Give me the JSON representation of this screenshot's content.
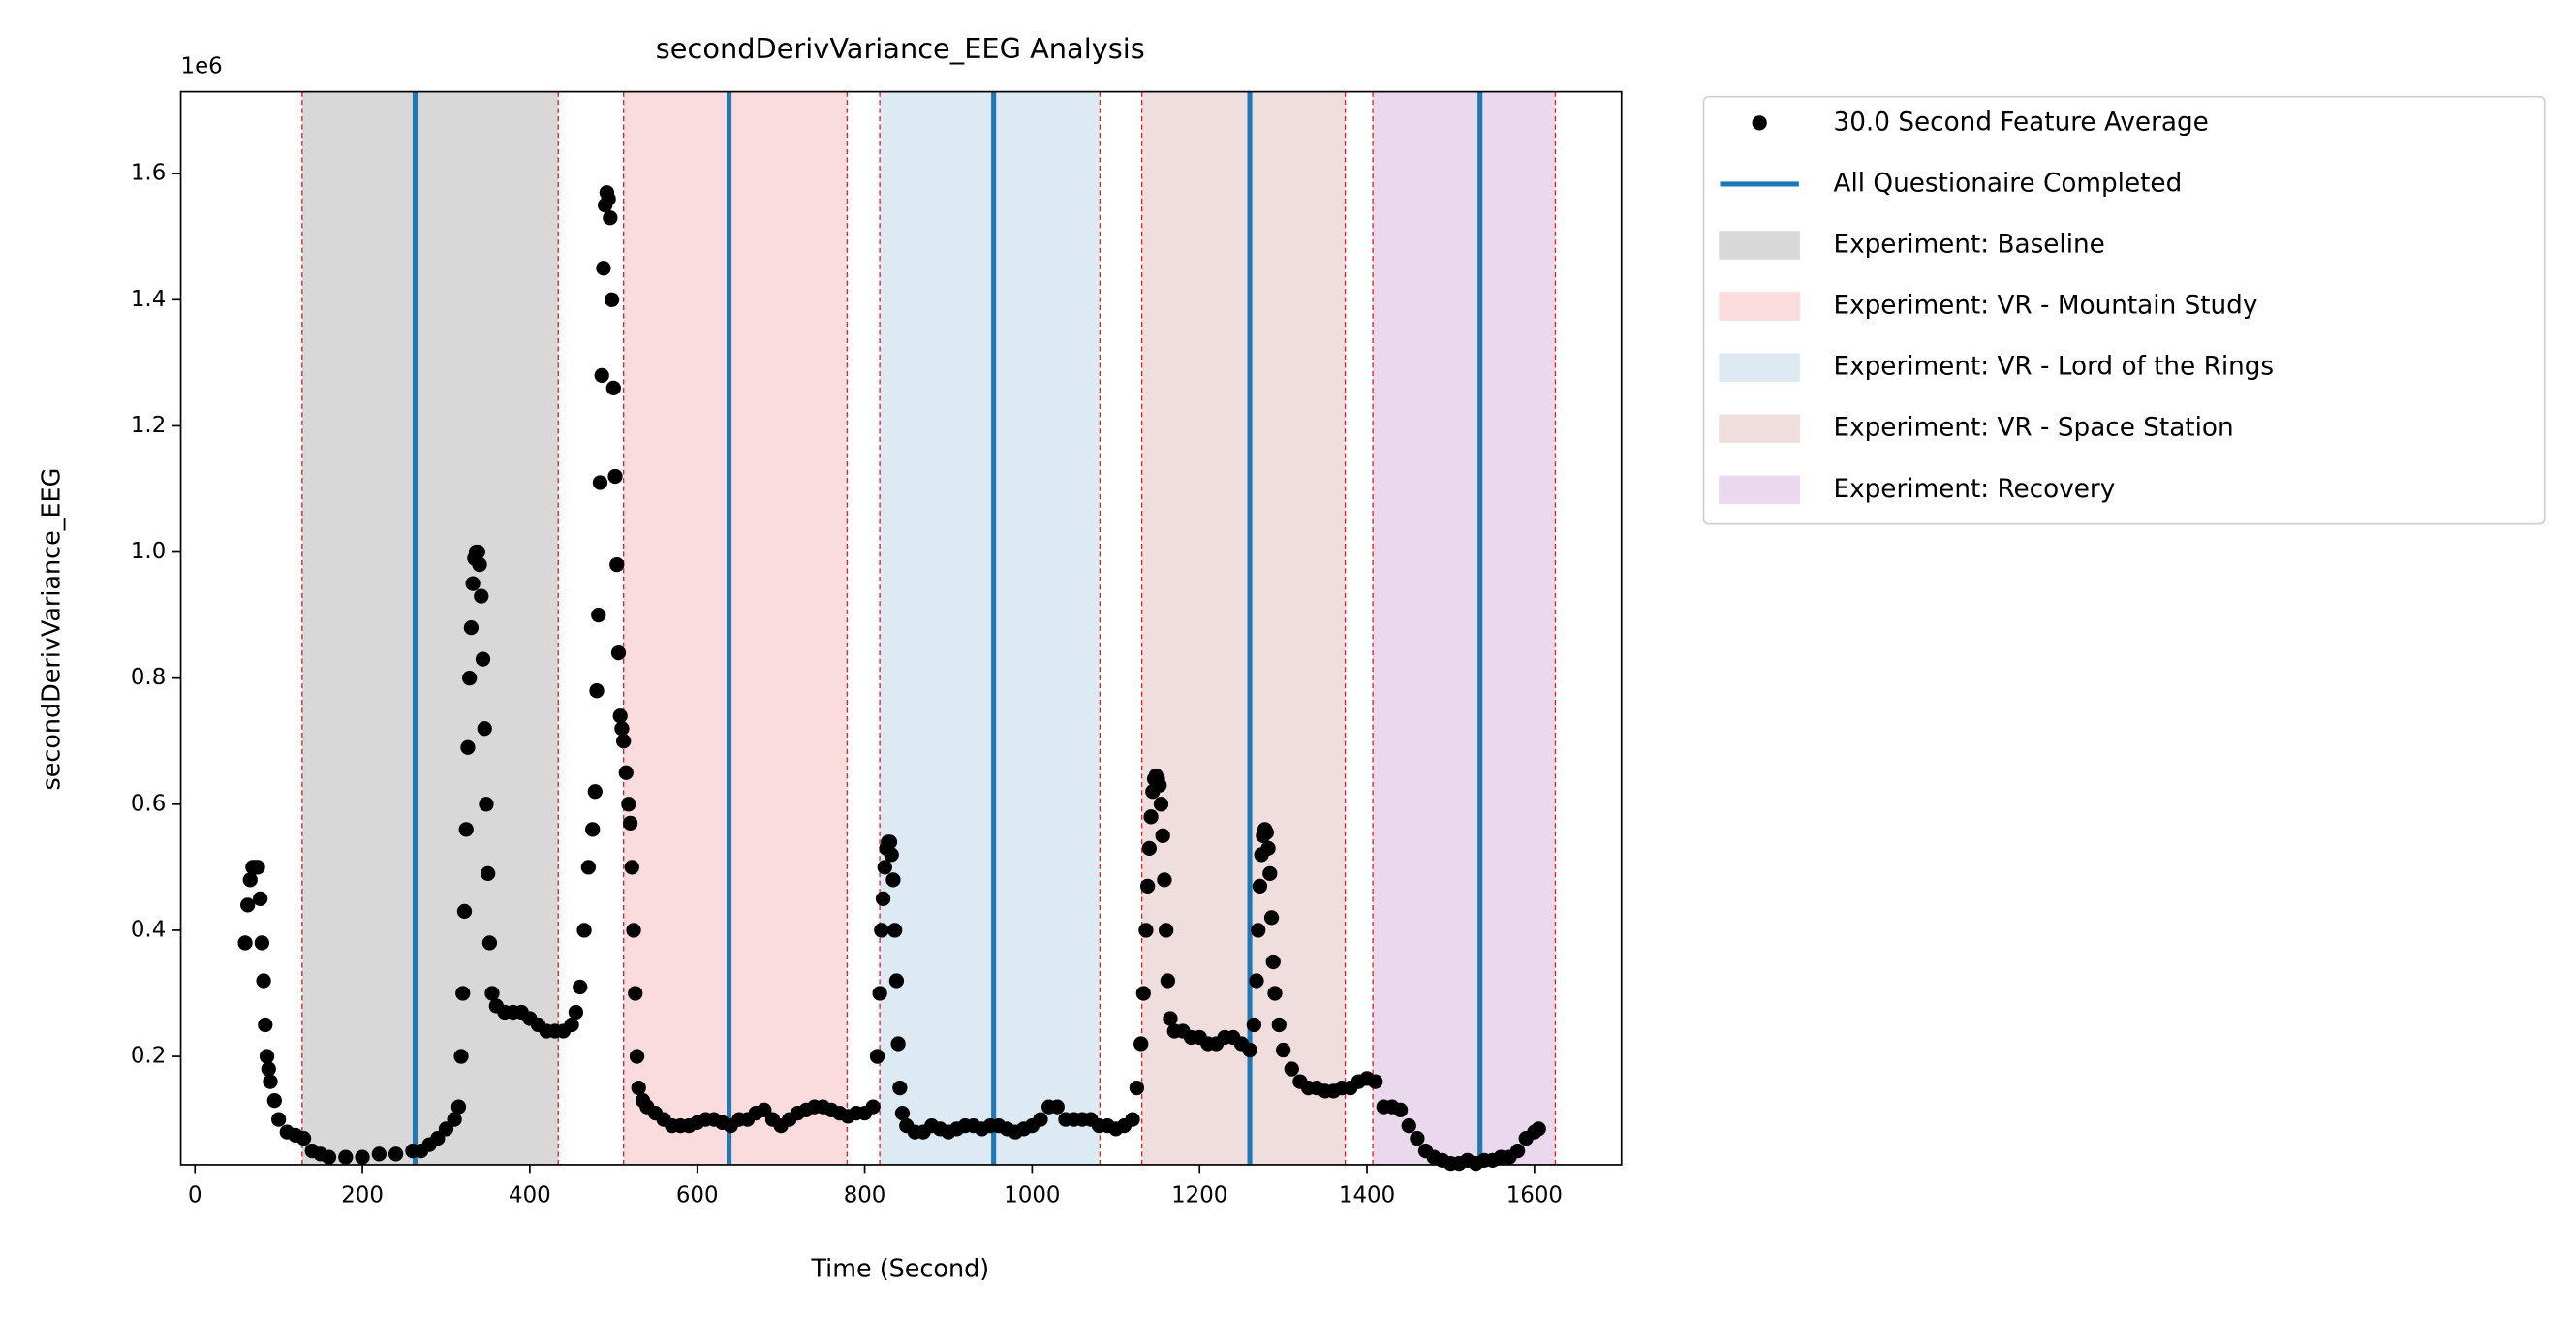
{
  "chart_data": {
    "type": "scatter",
    "title": "secondDerivVariance_EEG Analysis",
    "x_label": "Time (Second)",
    "y_label": "secondDerivVariance_EEG",
    "y_offset_label": "1e6",
    "xlim": [
      -17,
      1704
    ],
    "ylim": [
      0.028,
      1.73
    ],
    "xticks": [
      0,
      200,
      400,
      600,
      800,
      1000,
      1200,
      1400,
      1600
    ],
    "yticks": [
      0.2,
      0.4,
      0.6,
      0.8,
      {
        "value": 1.0,
        "label": "1.0"
      },
      1.2,
      1.4,
      1.6
    ],
    "series": [
      {
        "name": "30.0 Second Feature Average",
        "color": "#000000",
        "x": [
          60,
          63,
          66,
          69,
          72,
          75,
          78,
          80,
          82,
          84,
          86,
          88,
          90,
          95,
          100,
          110,
          120,
          130,
          140,
          150,
          160,
          180,
          200,
          220,
          240,
          260,
          270,
          280,
          290,
          300,
          310,
          315,
          318,
          320,
          322,
          324,
          326,
          328,
          330,
          332,
          334,
          336,
          338,
          340,
          342,
          344,
          346,
          348,
          350,
          352,
          355,
          360,
          370,
          380,
          390,
          400,
          410,
          420,
          430,
          440,
          450,
          455,
          460,
          465,
          470,
          475,
          478,
          480,
          482,
          484,
          486,
          488,
          490,
          492,
          494,
          496,
          498,
          500,
          502,
          504,
          506,
          508,
          510,
          512,
          515,
          518,
          520,
          522,
          524,
          526,
          528,
          530,
          535,
          540,
          550,
          560,
          570,
          580,
          590,
          600,
          610,
          620,
          630,
          640,
          650,
          660,
          670,
          680,
          690,
          700,
          710,
          720,
          730,
          740,
          750,
          760,
          770,
          780,
          790,
          800,
          810,
          815,
          818,
          820,
          822,
          824,
          826,
          828,
          830,
          832,
          834,
          836,
          838,
          840,
          842,
          845,
          850,
          860,
          870,
          880,
          890,
          900,
          910,
          920,
          930,
          940,
          950,
          960,
          970,
          980,
          990,
          1000,
          1010,
          1020,
          1030,
          1040,
          1050,
          1060,
          1070,
          1080,
          1090,
          1100,
          1110,
          1120,
          1125,
          1130,
          1133,
          1136,
          1138,
          1140,
          1142,
          1144,
          1146,
          1148,
          1150,
          1152,
          1154,
          1156,
          1158,
          1160,
          1162,
          1165,
          1170,
          1180,
          1190,
          1200,
          1210,
          1220,
          1230,
          1240,
          1250,
          1260,
          1265,
          1268,
          1270,
          1272,
          1274,
          1276,
          1278,
          1280,
          1282,
          1284,
          1286,
          1288,
          1290,
          1295,
          1300,
          1310,
          1320,
          1330,
          1340,
          1350,
          1360,
          1370,
          1380,
          1390,
          1400,
          1410,
          1420,
          1430,
          1440,
          1450,
          1460,
          1470,
          1480,
          1490,
          1500,
          1510,
          1520,
          1530,
          1540,
          1550,
          1560,
          1570,
          1580,
          1590,
          1600,
          1605
        ],
        "values": [
          0.38,
          0.44,
          0.48,
          0.5,
          0.5,
          0.5,
          0.45,
          0.38,
          0.32,
          0.25,
          0.2,
          0.18,
          0.16,
          0.13,
          0.1,
          0.08,
          0.075,
          0.07,
          0.05,
          0.045,
          0.04,
          0.04,
          0.04,
          0.045,
          0.045,
          0.05,
          0.05,
          0.06,
          0.07,
          0.085,
          0.1,
          0.12,
          0.2,
          0.3,
          0.43,
          0.56,
          0.69,
          0.8,
          0.88,
          0.95,
          0.99,
          1.0,
          1.0,
          0.98,
          0.93,
          0.83,
          0.72,
          0.6,
          0.49,
          0.38,
          0.3,
          0.28,
          0.27,
          0.27,
          0.27,
          0.26,
          0.25,
          0.24,
          0.24,
          0.24,
          0.25,
          0.27,
          0.31,
          0.4,
          0.5,
          0.56,
          0.62,
          0.78,
          0.9,
          1.11,
          1.28,
          1.45,
          1.55,
          1.57,
          1.56,
          1.53,
          1.4,
          1.26,
          1.12,
          0.98,
          0.84,
          0.74,
          0.72,
          0.7,
          0.65,
          0.6,
          0.57,
          0.5,
          0.4,
          0.3,
          0.2,
          0.15,
          0.13,
          0.12,
          0.11,
          0.1,
          0.09,
          0.09,
          0.09,
          0.095,
          0.1,
          0.1,
          0.095,
          0.09,
          0.1,
          0.1,
          0.11,
          0.115,
          0.1,
          0.09,
          0.1,
          0.11,
          0.115,
          0.12,
          0.12,
          0.115,
          0.11,
          0.105,
          0.11,
          0.11,
          0.12,
          0.2,
          0.3,
          0.4,
          0.45,
          0.5,
          0.53,
          0.54,
          0.54,
          0.52,
          0.48,
          0.4,
          0.32,
          0.22,
          0.15,
          0.11,
          0.09,
          0.08,
          0.08,
          0.09,
          0.085,
          0.08,
          0.085,
          0.09,
          0.09,
          0.085,
          0.09,
          0.09,
          0.085,
          0.08,
          0.085,
          0.09,
          0.1,
          0.12,
          0.12,
          0.1,
          0.1,
          0.1,
          0.1,
          0.09,
          0.09,
          0.085,
          0.09,
          0.1,
          0.15,
          0.22,
          0.3,
          0.4,
          0.47,
          0.53,
          0.58,
          0.62,
          0.64,
          0.645,
          0.64,
          0.63,
          0.6,
          0.55,
          0.48,
          0.4,
          0.32,
          0.26,
          0.24,
          0.24,
          0.23,
          0.23,
          0.22,
          0.22,
          0.23,
          0.23,
          0.22,
          0.21,
          0.25,
          0.32,
          0.4,
          0.47,
          0.52,
          0.55,
          0.56,
          0.555,
          0.53,
          0.49,
          0.42,
          0.35,
          0.3,
          0.25,
          0.21,
          0.18,
          0.16,
          0.15,
          0.15,
          0.145,
          0.145,
          0.15,
          0.15,
          0.16,
          0.165,
          0.16,
          0.12,
          0.12,
          0.115,
          0.09,
          0.07,
          0.05,
          0.04,
          0.035,
          0.03,
          0.03,
          0.035,
          0.03,
          0.035,
          0.035,
          0.04,
          0.04,
          0.05,
          0.07,
          0.08,
          0.085
        ]
      }
    ],
    "vlines": {
      "name": "All Questionaire Completed",
      "color": "#1f77b4",
      "x": [
        263,
        638,
        954,
        1260,
        1535
      ]
    },
    "spans": [
      {
        "name": "Experiment: Baseline",
        "color": "#d8d8d8",
        "range": [
          128,
          434
        ]
      },
      {
        "name": "Experiment: VR - Mountain Study",
        "color": "#fadcde",
        "range": [
          512,
          779
        ]
      },
      {
        "name": "Experiment: VR - Lord of the Rings",
        "color": "#dde9f3",
        "range": [
          818,
          1081
        ]
      },
      {
        "name": "Experiment: VR - Space Station",
        "color": "#f0dddd",
        "range": [
          1131,
          1374
        ]
      },
      {
        "name": "Experiment: Recovery",
        "color": "#ead8ec",
        "range": [
          1407,
          1625
        ]
      }
    ],
    "span_edge_color": "#d62728"
  }
}
